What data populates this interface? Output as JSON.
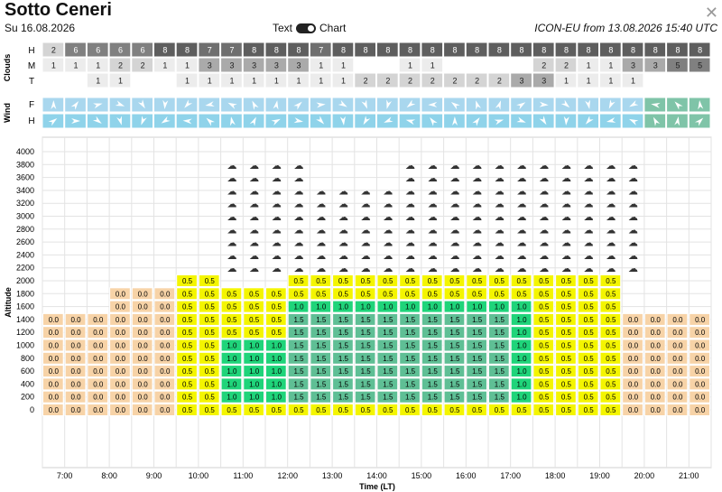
{
  "header": {
    "title": "Sotto Ceneri",
    "date": "Su 16.08.2026",
    "toggle_left": "Text",
    "toggle_right": "Chart",
    "model": "ICON-EU from 13.08.2026 15:40 UTC"
  },
  "clouds": {
    "section_label": "Clouds",
    "row_labels": [
      "H",
      "M",
      "T"
    ],
    "H": [
      "2",
      "6",
      "6",
      "6",
      "6",
      "8",
      "8",
      "7",
      "7",
      "8",
      "8",
      "8",
      "7",
      "8",
      "8",
      "8",
      "8",
      "8",
      "8",
      "8",
      "8",
      "8",
      "8",
      "8",
      "8",
      "8",
      "8",
      "8",
      "8",
      "8",
      "8",
      "8"
    ],
    "M": [
      "1",
      "1",
      "1",
      "2",
      "2",
      "1",
      "1",
      "3",
      "3",
      "3",
      "3",
      "3",
      "1",
      "1",
      "",
      "",
      "1",
      "1",
      "",
      "",
      "",
      "",
      "2",
      "2",
      "1",
      "1",
      "3",
      "3",
      "5",
      "5",
      "",
      ""
    ],
    "T": [
      "",
      "",
      "1",
      "1",
      "",
      "",
      "1",
      "1",
      "1",
      "1",
      "1",
      "1",
      "1",
      "1",
      "2",
      "2",
      "2",
      "2",
      "2",
      "2",
      "2",
      "3",
      "3",
      "1",
      "1",
      "1",
      "1",
      "",
      "",
      "",
      "",
      ""
    ]
  },
  "wind": {
    "section_label": "Wind",
    "row_labels": [
      "F",
      "H"
    ]
  },
  "altitude": {
    "axis_label": "Altitude",
    "ticks": [
      "4000",
      "3800",
      "3600",
      "3400",
      "3200",
      "3000",
      "2800",
      "2600",
      "2400",
      "2200",
      "2000",
      "1800",
      "1600",
      "1400",
      "1200",
      "1000",
      "800",
      "600",
      "400",
      "200",
      "0"
    ]
  },
  "time_axis": {
    "label": "Time (LT)",
    "ticks": [
      "7:00",
      "8:00",
      "9:00",
      "10:00",
      "11:00",
      "12:00",
      "13:00",
      "14:00",
      "15:00",
      "16:00",
      "17:00",
      "18:00",
      "19:00",
      "20:00",
      "21:00"
    ]
  },
  "thermals": {
    "values": [
      "0.0",
      "0.5",
      "1.0",
      "1.5"
    ],
    "colors": {
      "0.0": "#f7d3a7",
      "0.5": "#f4f500",
      "1.0": "#1fd47a",
      "1.5": "#5fbf95"
    }
  },
  "colors": {
    "grid": "#e3e3e3",
    "wind_light": "#a9d7ee",
    "wind_dark": "#55a8cf"
  }
}
